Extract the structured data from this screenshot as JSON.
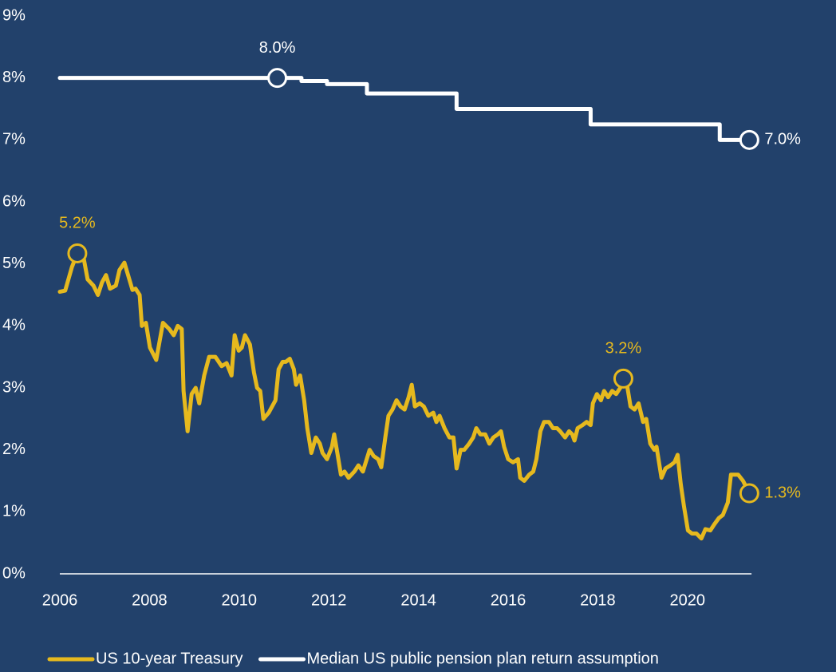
{
  "chart_data": {
    "type": "line",
    "xlim": [
      2006,
      2021.5
    ],
    "xticks": [
      2006,
      2008,
      2010,
      2012,
      2014,
      2016,
      2018,
      2020
    ],
    "ylim": [
      0,
      9
    ],
    "yticks": [
      {
        "value": 0,
        "label": "0%"
      },
      {
        "value": 1,
        "label": "1%"
      },
      {
        "value": 2,
        "label": "2%"
      },
      {
        "value": 3,
        "label": "3%"
      },
      {
        "value": 4,
        "label": "4%"
      },
      {
        "value": 5,
        "label": "5%"
      },
      {
        "value": 6,
        "label": "6%"
      },
      {
        "value": 7,
        "label": "7%"
      },
      {
        "value": 8,
        "label": "8%"
      },
      {
        "value": 9,
        "label": "9%"
      }
    ],
    "grid": false,
    "legend": "bottom",
    "series": [
      {
        "name": "US 10-year Treasury",
        "color": "#e6b91e",
        "x": [
          2006.0,
          2006.12,
          2006.27,
          2006.39,
          2006.53,
          2006.62,
          2006.75,
          2006.85,
          2006.94,
          2007.03,
          2007.12,
          2007.25,
          2007.33,
          2007.44,
          2007.53,
          2007.62,
          2007.69,
          2007.78,
          2007.83,
          2007.92,
          2008.01,
          2008.15,
          2008.3,
          2008.44,
          2008.54,
          2008.63,
          2008.72,
          2008.76,
          2008.85,
          2008.94,
          2009.03,
          2009.11,
          2009.22,
          2009.33,
          2009.47,
          2009.61,
          2009.72,
          2009.83,
          2009.9,
          2009.99,
          2010.06,
          2010.13,
          2010.24,
          2010.33,
          2010.4,
          2010.47,
          2010.54,
          2010.66,
          2010.81,
          2010.88,
          2010.97,
          2011.04,
          2011.13,
          2011.22,
          2011.27,
          2011.36,
          2011.45,
          2011.52,
          2011.61,
          2011.71,
          2011.8,
          2011.86,
          2011.96,
          2012.07,
          2012.12,
          2012.19,
          2012.27,
          2012.35,
          2012.44,
          2012.57,
          2012.66,
          2012.76,
          2012.91,
          2013.0,
          2013.1,
          2013.17,
          2013.26,
          2013.33,
          2013.42,
          2013.51,
          2013.6,
          2013.69,
          2013.78,
          2013.85,
          2013.92,
          2014.03,
          2014.12,
          2014.22,
          2014.33,
          2014.4,
          2014.47,
          2014.58,
          2014.69,
          2014.78,
          2014.85,
          2014.94,
          2015.02,
          2015.13,
          2015.22,
          2015.29,
          2015.38,
          2015.49,
          2015.58,
          2015.67,
          2015.77,
          2015.84,
          2015.91,
          2016.0,
          2016.11,
          2016.22,
          2016.27,
          2016.36,
          2016.47,
          2016.56,
          2016.63,
          2016.72,
          2016.8,
          2016.91,
          2017.0,
          2017.09,
          2017.16,
          2017.27,
          2017.36,
          2017.43,
          2017.48,
          2017.55,
          2017.66,
          2017.75,
          2017.84,
          2017.89,
          2017.98,
          2018.07,
          2018.14,
          2018.23,
          2018.32,
          2018.41,
          2018.5,
          2018.57,
          2018.64,
          2018.73,
          2018.82,
          2018.91,
          2019.01,
          2019.08,
          2019.17,
          2019.26,
          2019.31,
          2019.42,
          2019.51,
          2019.62,
          2019.71,
          2019.78,
          2019.85,
          2019.92,
          2020.01,
          2020.1,
          2020.2,
          2020.31,
          2020.4,
          2020.51,
          2020.6,
          2020.7,
          2020.79,
          2020.9,
          2020.97,
          2021.06,
          2021.13,
          2021.24,
          2021.38
        ],
        "values": [
          4.55,
          4.57,
          4.95,
          5.17,
          5.1,
          4.75,
          4.65,
          4.5,
          4.7,
          4.82,
          4.6,
          4.65,
          4.9,
          5.02,
          4.8,
          4.58,
          4.6,
          4.5,
          4.0,
          4.05,
          3.65,
          3.45,
          4.05,
          3.95,
          3.85,
          4.0,
          3.95,
          2.95,
          2.3,
          2.9,
          3.0,
          2.75,
          3.2,
          3.5,
          3.5,
          3.35,
          3.4,
          3.2,
          3.85,
          3.6,
          3.65,
          3.85,
          3.7,
          3.25,
          3.0,
          2.95,
          2.5,
          2.6,
          2.8,
          3.3,
          3.42,
          3.42,
          3.47,
          3.3,
          3.05,
          3.2,
          2.8,
          2.35,
          1.95,
          2.2,
          2.1,
          1.95,
          1.85,
          2.05,
          2.25,
          1.95,
          1.6,
          1.65,
          1.55,
          1.65,
          1.75,
          1.65,
          2.0,
          1.9,
          1.85,
          1.72,
          2.2,
          2.55,
          2.65,
          2.8,
          2.7,
          2.65,
          2.85,
          3.05,
          2.7,
          2.75,
          2.7,
          2.55,
          2.6,
          2.45,
          2.55,
          2.35,
          2.2,
          2.2,
          1.7,
          2.0,
          2.0,
          2.1,
          2.2,
          2.35,
          2.25,
          2.25,
          2.1,
          2.2,
          2.25,
          2.3,
          2.05,
          1.85,
          1.8,
          1.85,
          1.55,
          1.5,
          1.6,
          1.65,
          1.85,
          2.3,
          2.45,
          2.45,
          2.35,
          2.35,
          2.3,
          2.2,
          2.3,
          2.25,
          2.15,
          2.35,
          2.4,
          2.45,
          2.4,
          2.75,
          2.9,
          2.8,
          2.95,
          2.85,
          2.95,
          2.9,
          3.0,
          3.15,
          3.1,
          2.7,
          2.65,
          2.75,
          2.45,
          2.5,
          2.1,
          2.0,
          2.05,
          1.55,
          1.7,
          1.75,
          1.8,
          1.92,
          1.45,
          1.1,
          0.7,
          0.65,
          0.65,
          0.57,
          0.72,
          0.7,
          0.8,
          0.9,
          0.95,
          1.15,
          1.6,
          1.6,
          1.6,
          1.5,
          1.3
        ]
      },
      {
        "name": "Median US public pension plan return assumption",
        "color": "#ffffff",
        "x": [
          2006.0,
          2010.85,
          2011.39,
          2011.39,
          2011.96,
          2011.96,
          2012.85,
          2012.85,
          2014.85,
          2014.85,
          2017.84,
          2017.84,
          2020.72,
          2020.72,
          2021.38
        ],
        "values": [
          8.0,
          8.0,
          8.0,
          7.95,
          7.95,
          7.9,
          7.9,
          7.75,
          7.75,
          7.5,
          7.5,
          7.25,
          7.25,
          7.0,
          7.0
        ]
      }
    ],
    "annotations": [
      {
        "text": "5.2%",
        "series": 0,
        "x": 2006.39,
        "y": 5.17,
        "position": "above"
      },
      {
        "text": "3.2%",
        "series": 0,
        "x": 2018.57,
        "y": 3.15,
        "position": "above"
      },
      {
        "text": "1.3%",
        "series": 0,
        "x": 2021.38,
        "y": 1.3,
        "position": "right"
      },
      {
        "text": "8.0%",
        "series": 1,
        "x": 2010.85,
        "y": 8.0,
        "position": "above"
      },
      {
        "text": "7.0%",
        "series": 1,
        "x": 2021.38,
        "y": 7.0,
        "position": "right"
      }
    ]
  }
}
